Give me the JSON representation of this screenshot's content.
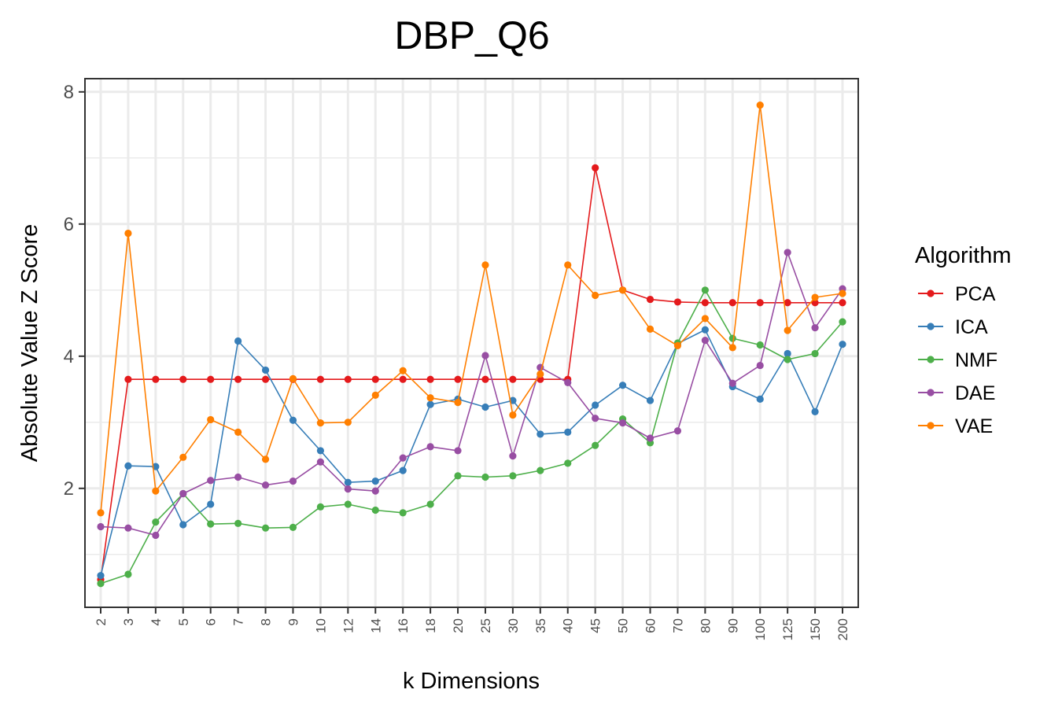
{
  "chart_data": {
    "type": "line",
    "title": "DBP_Q6",
    "xlabel": "k Dimensions",
    "ylabel": "Absolute Value Z Score",
    "categories": [
      "2",
      "3",
      "4",
      "5",
      "6",
      "7",
      "8",
      "9",
      "10",
      "12",
      "14",
      "16",
      "18",
      "20",
      "25",
      "30",
      "35",
      "40",
      "45",
      "50",
      "60",
      "70",
      "80",
      "90",
      "100",
      "125",
      "150",
      "200"
    ],
    "ylim": [
      0.2,
      8.2
    ],
    "yticks": [
      2,
      4,
      6,
      8
    ],
    "yticks_labels": [
      "2",
      "4",
      "6",
      "8"
    ],
    "grid": true,
    "legend": {
      "title": "Algorithm",
      "position": "right"
    },
    "series": [
      {
        "name": "PCA",
        "color": "#e41a1c",
        "values": [
          0.62,
          3.65,
          3.65,
          3.65,
          3.65,
          3.65,
          3.65,
          3.65,
          3.65,
          3.65,
          3.65,
          3.65,
          3.65,
          3.65,
          3.65,
          3.65,
          3.65,
          3.65,
          6.85,
          5.0,
          4.86,
          4.82,
          4.81,
          4.81,
          4.81,
          4.81,
          4.81,
          4.81
        ]
      },
      {
        "name": "ICA",
        "color": "#377eb8",
        "values": [
          0.68,
          2.34,
          2.33,
          1.45,
          1.76,
          4.23,
          3.79,
          3.03,
          2.57,
          2.09,
          2.11,
          2.27,
          3.27,
          3.35,
          3.23,
          3.33,
          2.82,
          2.85,
          3.26,
          3.56,
          3.33,
          4.19,
          4.4,
          3.54,
          3.35,
          4.04,
          3.16,
          4.18
        ]
      },
      {
        "name": "NMF",
        "color": "#4daf4a",
        "values": [
          0.56,
          0.7,
          1.49,
          1.92,
          1.46,
          1.47,
          1.4,
          1.41,
          1.72,
          1.76,
          1.67,
          1.63,
          1.76,
          2.19,
          2.17,
          2.19,
          2.27,
          2.38,
          2.65,
          3.05,
          2.69,
          4.2,
          5.0,
          4.27,
          4.17,
          3.95,
          4.04,
          4.52
        ]
      },
      {
        "name": "DAE",
        "color": "#984ea3",
        "values": [
          1.42,
          1.4,
          1.29,
          1.92,
          2.12,
          2.17,
          2.05,
          2.11,
          2.4,
          1.99,
          1.96,
          2.46,
          2.63,
          2.57,
          4.01,
          2.49,
          3.83,
          3.6,
          3.06,
          2.99,
          2.76,
          2.87,
          4.24,
          3.59,
          3.86,
          5.57,
          4.43,
          5.02
        ]
      },
      {
        "name": "VAE",
        "color": "#ff7f00",
        "values": [
          1.63,
          5.86,
          1.96,
          2.47,
          3.04,
          2.85,
          2.44,
          3.66,
          2.99,
          3.0,
          3.41,
          3.78,
          3.37,
          3.3,
          5.38,
          3.11,
          3.73,
          5.38,
          4.92,
          5.0,
          4.41,
          4.16,
          4.57,
          4.13,
          7.8,
          4.39,
          4.89,
          4.95
        ]
      }
    ]
  }
}
